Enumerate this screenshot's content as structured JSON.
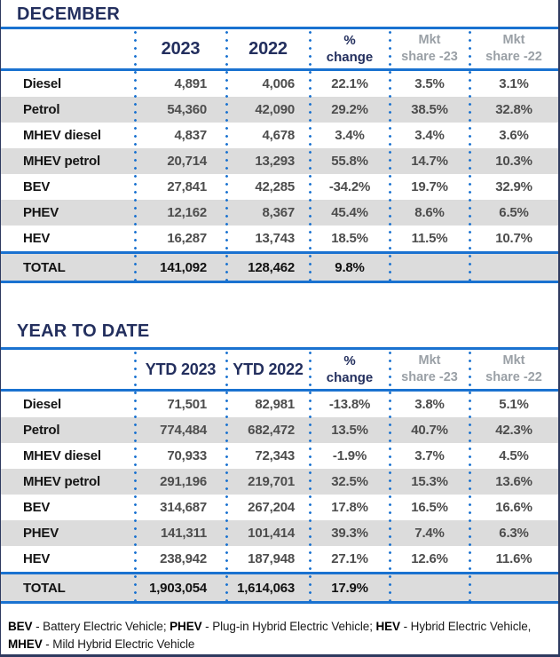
{
  "colors": {
    "navy": "#232f5e",
    "line_blue": "#1a72d0",
    "row_stripe": "#dcdcdc",
    "value_gray": "#4d4d4d",
    "mkt_header_gray": "#9aa0a6"
  },
  "december": {
    "title": "DECEMBER",
    "headers": {
      "col1": "2023",
      "col2": "2022",
      "pct_top": "%",
      "pct_bottom": "change",
      "mkt23_top": "Mkt",
      "mkt23_bottom": "share -23",
      "mkt22_top": "Mkt",
      "mkt22_bottom": "share -22"
    },
    "rows": [
      {
        "label": "Diesel",
        "y1": "4,891",
        "y2": "4,006",
        "chg": "22.1%",
        "m23": "3.5%",
        "m22": "3.1%"
      },
      {
        "label": "Petrol",
        "y1": "54,360",
        "y2": "42,090",
        "chg": "29.2%",
        "m23": "38.5%",
        "m22": "32.8%"
      },
      {
        "label": "MHEV diesel",
        "y1": "4,837",
        "y2": "4,678",
        "chg": "3.4%",
        "m23": "3.4%",
        "m22": "3.6%"
      },
      {
        "label": "MHEV petrol",
        "y1": "20,714",
        "y2": "13,293",
        "chg": "55.8%",
        "m23": "14.7%",
        "m22": "10.3%"
      },
      {
        "label": "BEV",
        "y1": "27,841",
        "y2": "42,285",
        "chg": "-34.2%",
        "m23": "19.7%",
        "m22": "32.9%"
      },
      {
        "label": "PHEV",
        "y1": "12,162",
        "y2": "8,367",
        "chg": "45.4%",
        "m23": "8.6%",
        "m22": "6.5%"
      },
      {
        "label": "HEV",
        "y1": "16,287",
        "y2": "13,743",
        "chg": "18.5%",
        "m23": "11.5%",
        "m22": "10.7%"
      }
    ],
    "total": {
      "label": "TOTAL",
      "y1": "141,092",
      "y2": "128,462",
      "chg": "9.8%",
      "m23": "",
      "m22": ""
    }
  },
  "ytd": {
    "title": "YEAR TO DATE",
    "headers": {
      "col1": "YTD 2023",
      "col2": "YTD 2022",
      "pct_top": "%",
      "pct_bottom": "change",
      "mkt23_top": "Mkt",
      "mkt23_bottom": "share -23",
      "mkt22_top": "Mkt",
      "mkt22_bottom": "share -22"
    },
    "rows": [
      {
        "label": "Diesel",
        "y1": "71,501",
        "y2": "82,981",
        "chg": "-13.8%",
        "m23": "3.8%",
        "m22": "5.1%"
      },
      {
        "label": "Petrol",
        "y1": "774,484",
        "y2": "682,472",
        "chg": "13.5%",
        "m23": "40.7%",
        "m22": "42.3%"
      },
      {
        "label": "MHEV diesel",
        "y1": "70,933",
        "y2": "72,343",
        "chg": "-1.9%",
        "m23": "3.7%",
        "m22": "4.5%"
      },
      {
        "label": "MHEV petrol",
        "y1": "291,196",
        "y2": "219,701",
        "chg": "32.5%",
        "m23": "15.3%",
        "m22": "13.6%"
      },
      {
        "label": "BEV",
        "y1": "314,687",
        "y2": "267,204",
        "chg": "17.8%",
        "m23": "16.5%",
        "m22": "16.6%"
      },
      {
        "label": "PHEV",
        "y1": "141,311",
        "y2": "101,414",
        "chg": "39.3%",
        "m23": "7.4%",
        "m22": "6.3%"
      },
      {
        "label": "HEV",
        "y1": "238,942",
        "y2": "187,948",
        "chg": "27.1%",
        "m23": "12.6%",
        "m22": "11.6%"
      }
    ],
    "total": {
      "label": "TOTAL",
      "y1": "1,903,054",
      "y2": "1,614,063",
      "chg": "17.9%",
      "m23": "",
      "m22": ""
    }
  },
  "footnote": {
    "parts": [
      {
        "abbr": "BEV",
        "rest": " - Battery Electric Vehicle; "
      },
      {
        "abbr": "PHEV",
        "rest": " - Plug-in Hybrid Electric Vehicle; "
      },
      {
        "abbr": "HEV",
        "rest": " - Hybrid Electric Vehicle,"
      },
      {
        "abbr": "MHEV",
        "rest": " - Mild Hybrid Electric Vehicle"
      }
    ]
  }
}
